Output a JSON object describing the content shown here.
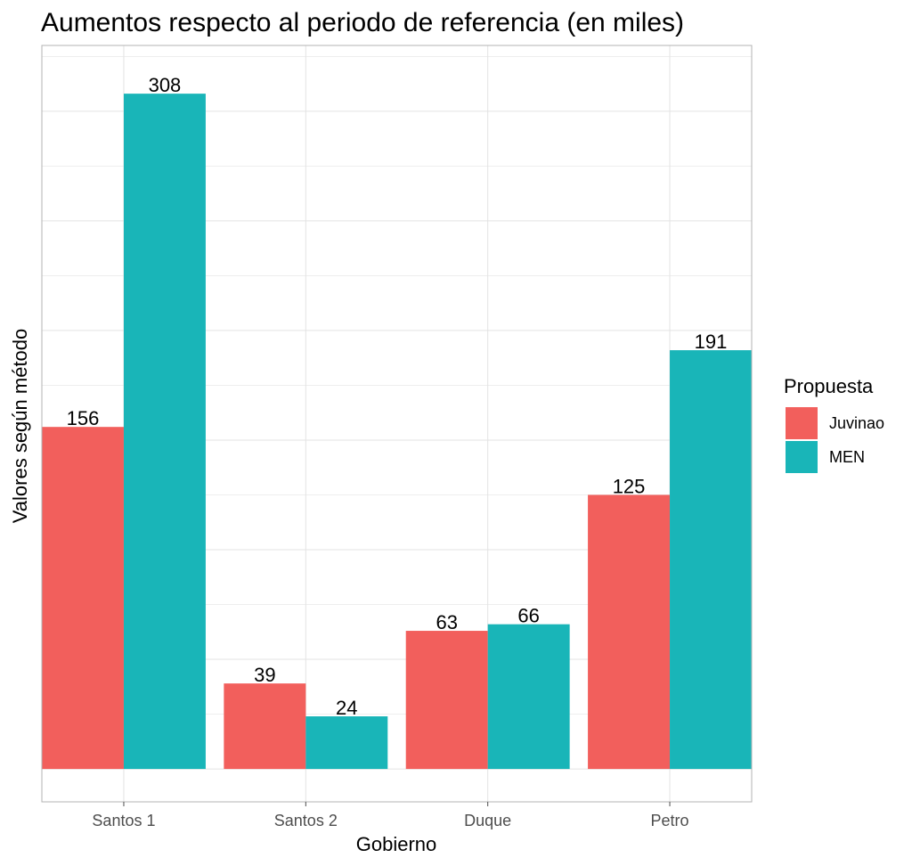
{
  "chart_data": {
    "type": "bar",
    "title": "Aumentos respecto al periodo de referencia (en miles)",
    "xlabel": "Gobierno",
    "ylabel": "Valores según método",
    "categories": [
      "Santos 1",
      "Santos 2",
      "Duque",
      "Petro"
    ],
    "series": [
      {
        "name": "Juvinao",
        "values": [
          156,
          39,
          63,
          125
        ],
        "color": "#F25F5C"
      },
      {
        "name": "MEN",
        "values": [
          308,
          24,
          66,
          191
        ],
        "color": "#19B5B8"
      }
    ],
    "ylim": [
      -15,
      330
    ],
    "y_gridlines": [
      0,
      50,
      100,
      150,
      200,
      250,
      300
    ],
    "y_tick_labels_shown": false,
    "grid": true,
    "legend": {
      "title": "Propuesta",
      "position": "right"
    },
    "colors": {
      "grid": "#e3e3e3",
      "panel_border": "#b3b3b3"
    }
  }
}
